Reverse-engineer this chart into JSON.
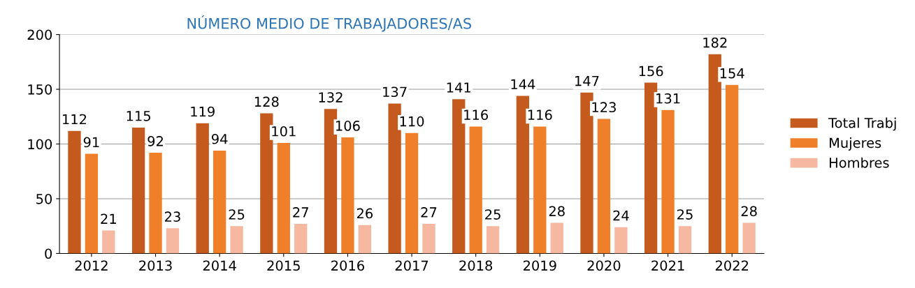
{
  "chart_data": {
    "type": "bar",
    "title": "NÚMERO MEDIO DE TRABAJADORES/AS",
    "categories": [
      "2012",
      "2013",
      "2014",
      "2015",
      "2016",
      "2017",
      "2018",
      "2019",
      "2020",
      "2021",
      "2022"
    ],
    "series": [
      {
        "name": "Total Trabj",
        "color": "#c55a1e",
        "values": [
          112,
          115,
          119,
          128,
          132,
          137,
          141,
          144,
          147,
          156,
          182
        ]
      },
      {
        "name": "Mujeres",
        "color": "#f07f2a",
        "values": [
          91,
          92,
          94,
          101,
          106,
          110,
          116,
          116,
          123,
          131,
          154
        ]
      },
      {
        "name": "Hombres",
        "color": "#f6b8a0",
        "values": [
          21,
          23,
          25,
          27,
          26,
          27,
          25,
          28,
          24,
          25,
          28
        ]
      }
    ],
    "ylim": [
      0,
      200
    ],
    "yticks": [
      0,
      50,
      100,
      150,
      200
    ],
    "grid": "y",
    "legend": "right",
    "data_labels": true
  }
}
